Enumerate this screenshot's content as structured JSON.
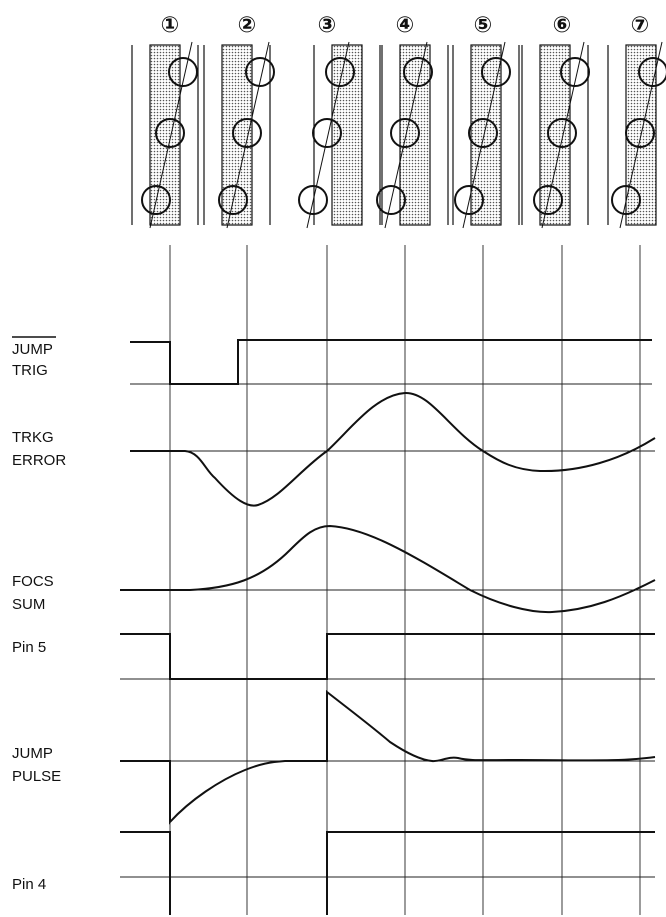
{
  "step_labels": [
    "①",
    "②",
    "③",
    "④",
    "⑤",
    "⑥",
    "⑦"
  ],
  "signals": [
    {
      "lines": [
        "JUMP",
        "TRIG"
      ]
    },
    {
      "lines": [
        "TRKG",
        "ERROR"
      ]
    },
    {
      "lines": [
        "FOCS",
        "SUM"
      ]
    },
    {
      "lines": [
        "Pin 5"
      ]
    },
    {
      "lines": [
        "JUMP",
        "PULSE"
      ]
    },
    {
      "lines": [
        "Pin 4"
      ]
    }
  ]
}
